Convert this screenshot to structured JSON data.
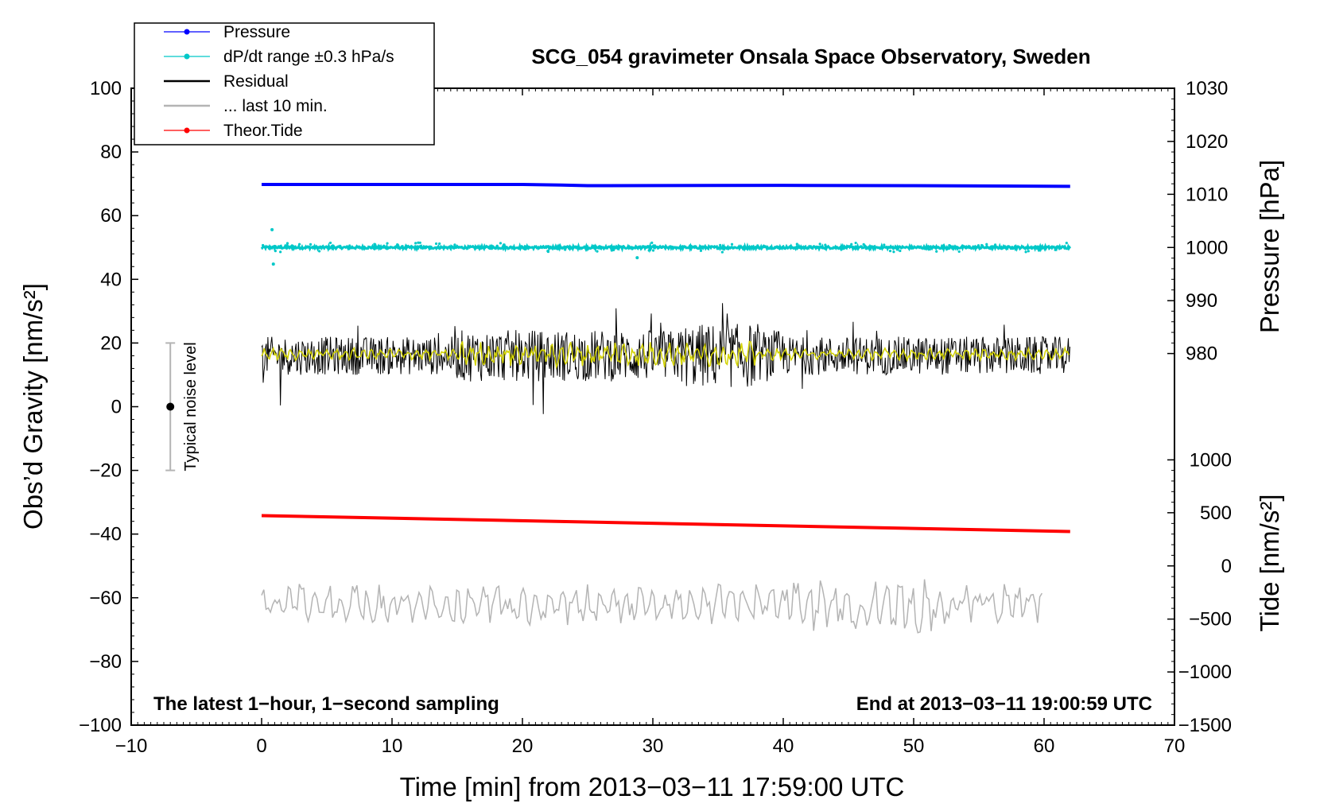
{
  "chart_data": {
    "type": "line",
    "title": "SCG_054 gravimeter Onsala Space Observatory, Sweden",
    "xlabel": "Time [min] from 2013−03−11 17:59:00 UTC",
    "ylabel_left": "Obs’d Gravity [nm/s²]",
    "ylabel_right_top": "Pressure [hPa]",
    "ylabel_right_bottom": "Tide [nm/s²]",
    "xlim": [
      -10,
      70
    ],
    "ylim_left": [
      -100,
      100
    ],
    "x_ticks": [
      "−10",
      "0",
      "10",
      "20",
      "30",
      "40",
      "50",
      "60",
      "70"
    ],
    "y_ticks_left": [
      "100",
      "80",
      "60",
      "40",
      "20",
      "0",
      "−20",
      "−40",
      "−60",
      "−80",
      "−100"
    ],
    "pressure_axis": {
      "ticks": [
        "1030",
        "1020",
        "1010",
        "1000",
        "990",
        "980"
      ],
      "values": [
        1030,
        1020,
        1010,
        1000,
        990,
        980
      ],
      "left_equiv": [
        100,
        83.3,
        66.7,
        50,
        33.3,
        16.7
      ]
    },
    "tide_axis": {
      "ticks": [
        "1000",
        "500",
        "0",
        "−500",
        "−1000",
        "−1500"
      ],
      "values": [
        1000,
        500,
        0,
        -500,
        -1000,
        -1500
      ],
      "left_equiv": [
        -16.7,
        -33.3,
        -50,
        -66.7,
        -83.3,
        -100
      ]
    },
    "legend": [
      {
        "label": "Pressure",
        "color": "#0000ff",
        "marker": true
      },
      {
        "label": "dP/dt range ±0.3 hPa/s",
        "color": "#00c8c8",
        "marker": true
      },
      {
        "label": "Residual",
        "color": "#000000",
        "marker": false
      },
      {
        "label": "... last 10 min.",
        "color": "#b4b4b4",
        "marker": false
      },
      {
        "label": "Theor.Tide",
        "color": "#ff0000",
        "marker": true
      }
    ],
    "series": [
      {
        "name": "Pressure",
        "color": "#0000ff",
        "x": [
          0,
          10,
          20,
          23,
          25,
          40,
          50,
          62
        ],
        "y": [
          69.8,
          69.8,
          69.8,
          69.6,
          69.4,
          69.5,
          69.4,
          69.2
        ]
      },
      {
        "name": "dP/dt range ±0.3 hPa/s",
        "color": "#00c8c8",
        "x_range": [
          0,
          62
        ],
        "baseline": 50,
        "spread": 0.8
      },
      {
        "name": "Residual",
        "color": "#000000",
        "x_range": [
          0,
          62
        ],
        "baseline": 16,
        "amplitude": 6
      },
      {
        "name": "Residual smoothed",
        "color": "#d2d200",
        "x_range": [
          0,
          62
        ],
        "baseline": 16.5,
        "amplitude": 1.8
      },
      {
        "name": "Theor.Tide",
        "color": "#ff0000",
        "x": [
          0,
          62
        ],
        "y": [
          -34.2,
          -39.2
        ]
      },
      {
        "name": "... last 10 min.",
        "color": "#b4b4b4",
        "x_range": [
          0,
          60
        ],
        "baseline": -62,
        "amplitude": 4.5
      }
    ],
    "noise_bar": {
      "label": "Typical noise level",
      "x": -7,
      "center": 0,
      "low": -20,
      "high": 20
    },
    "annotation_left": "The latest 1−hour, 1−second sampling",
    "annotation_right": "End at 2013−03−11 19:00:59 UTC"
  }
}
